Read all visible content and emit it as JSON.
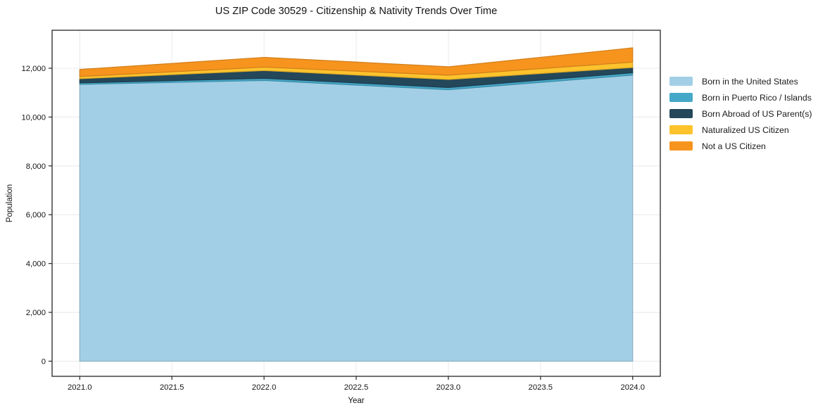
{
  "title": "US ZIP Code 30529 - Citizenship & Nativity Trends Over Time",
  "chart_data": {
    "type": "area",
    "stacked": true,
    "title": "US ZIP Code 30529 - Citizenship & Nativity Trends Over Time",
    "xlabel": "Year",
    "ylabel": "Population",
    "x": [
      2021,
      2022,
      2023,
      2024
    ],
    "series": [
      {
        "name": "Born in the United States",
        "color": "#a3cfe6",
        "values": [
          11340,
          11500,
          11120,
          11720
        ]
      },
      {
        "name": "Born in Puerto Rico / Islands",
        "color": "#45a8c8",
        "values": [
          60,
          85,
          90,
          95
        ]
      },
      {
        "name": "Born Abroad of US Parent(s)",
        "color": "#24475a",
        "values": [
          170,
          320,
          330,
          215
        ]
      },
      {
        "name": "Naturalized US Citizen",
        "color": "#fdc32d",
        "values": [
          90,
          140,
          175,
          220
        ]
      },
      {
        "name": "Not a US Citizen",
        "color": "#f6941e",
        "values": [
          290,
          400,
          345,
          585
        ]
      }
    ],
    "xticks": [
      2021.0,
      2021.5,
      2022.0,
      2022.5,
      2023.0,
      2023.5,
      2024.0
    ],
    "xtick_labels": [
      "2021.0",
      "2021.5",
      "2022.0",
      "2022.5",
      "2023.0",
      "2023.5",
      "2024.0"
    ],
    "yticks": [
      0,
      2000,
      4000,
      6000,
      8000,
      10000,
      12000
    ],
    "ytick_labels": [
      "0",
      "2,000",
      "4,000",
      "6,000",
      "8,000",
      "10,000",
      "12,000"
    ],
    "xlim": [
      2020.85,
      2024.15
    ],
    "ylim": [
      -620,
      13556
    ],
    "grid": true,
    "grid_color": "#e8e8e8",
    "spine_color": "#262626",
    "tick_label_color": "#141414",
    "legend_position": "right"
  }
}
